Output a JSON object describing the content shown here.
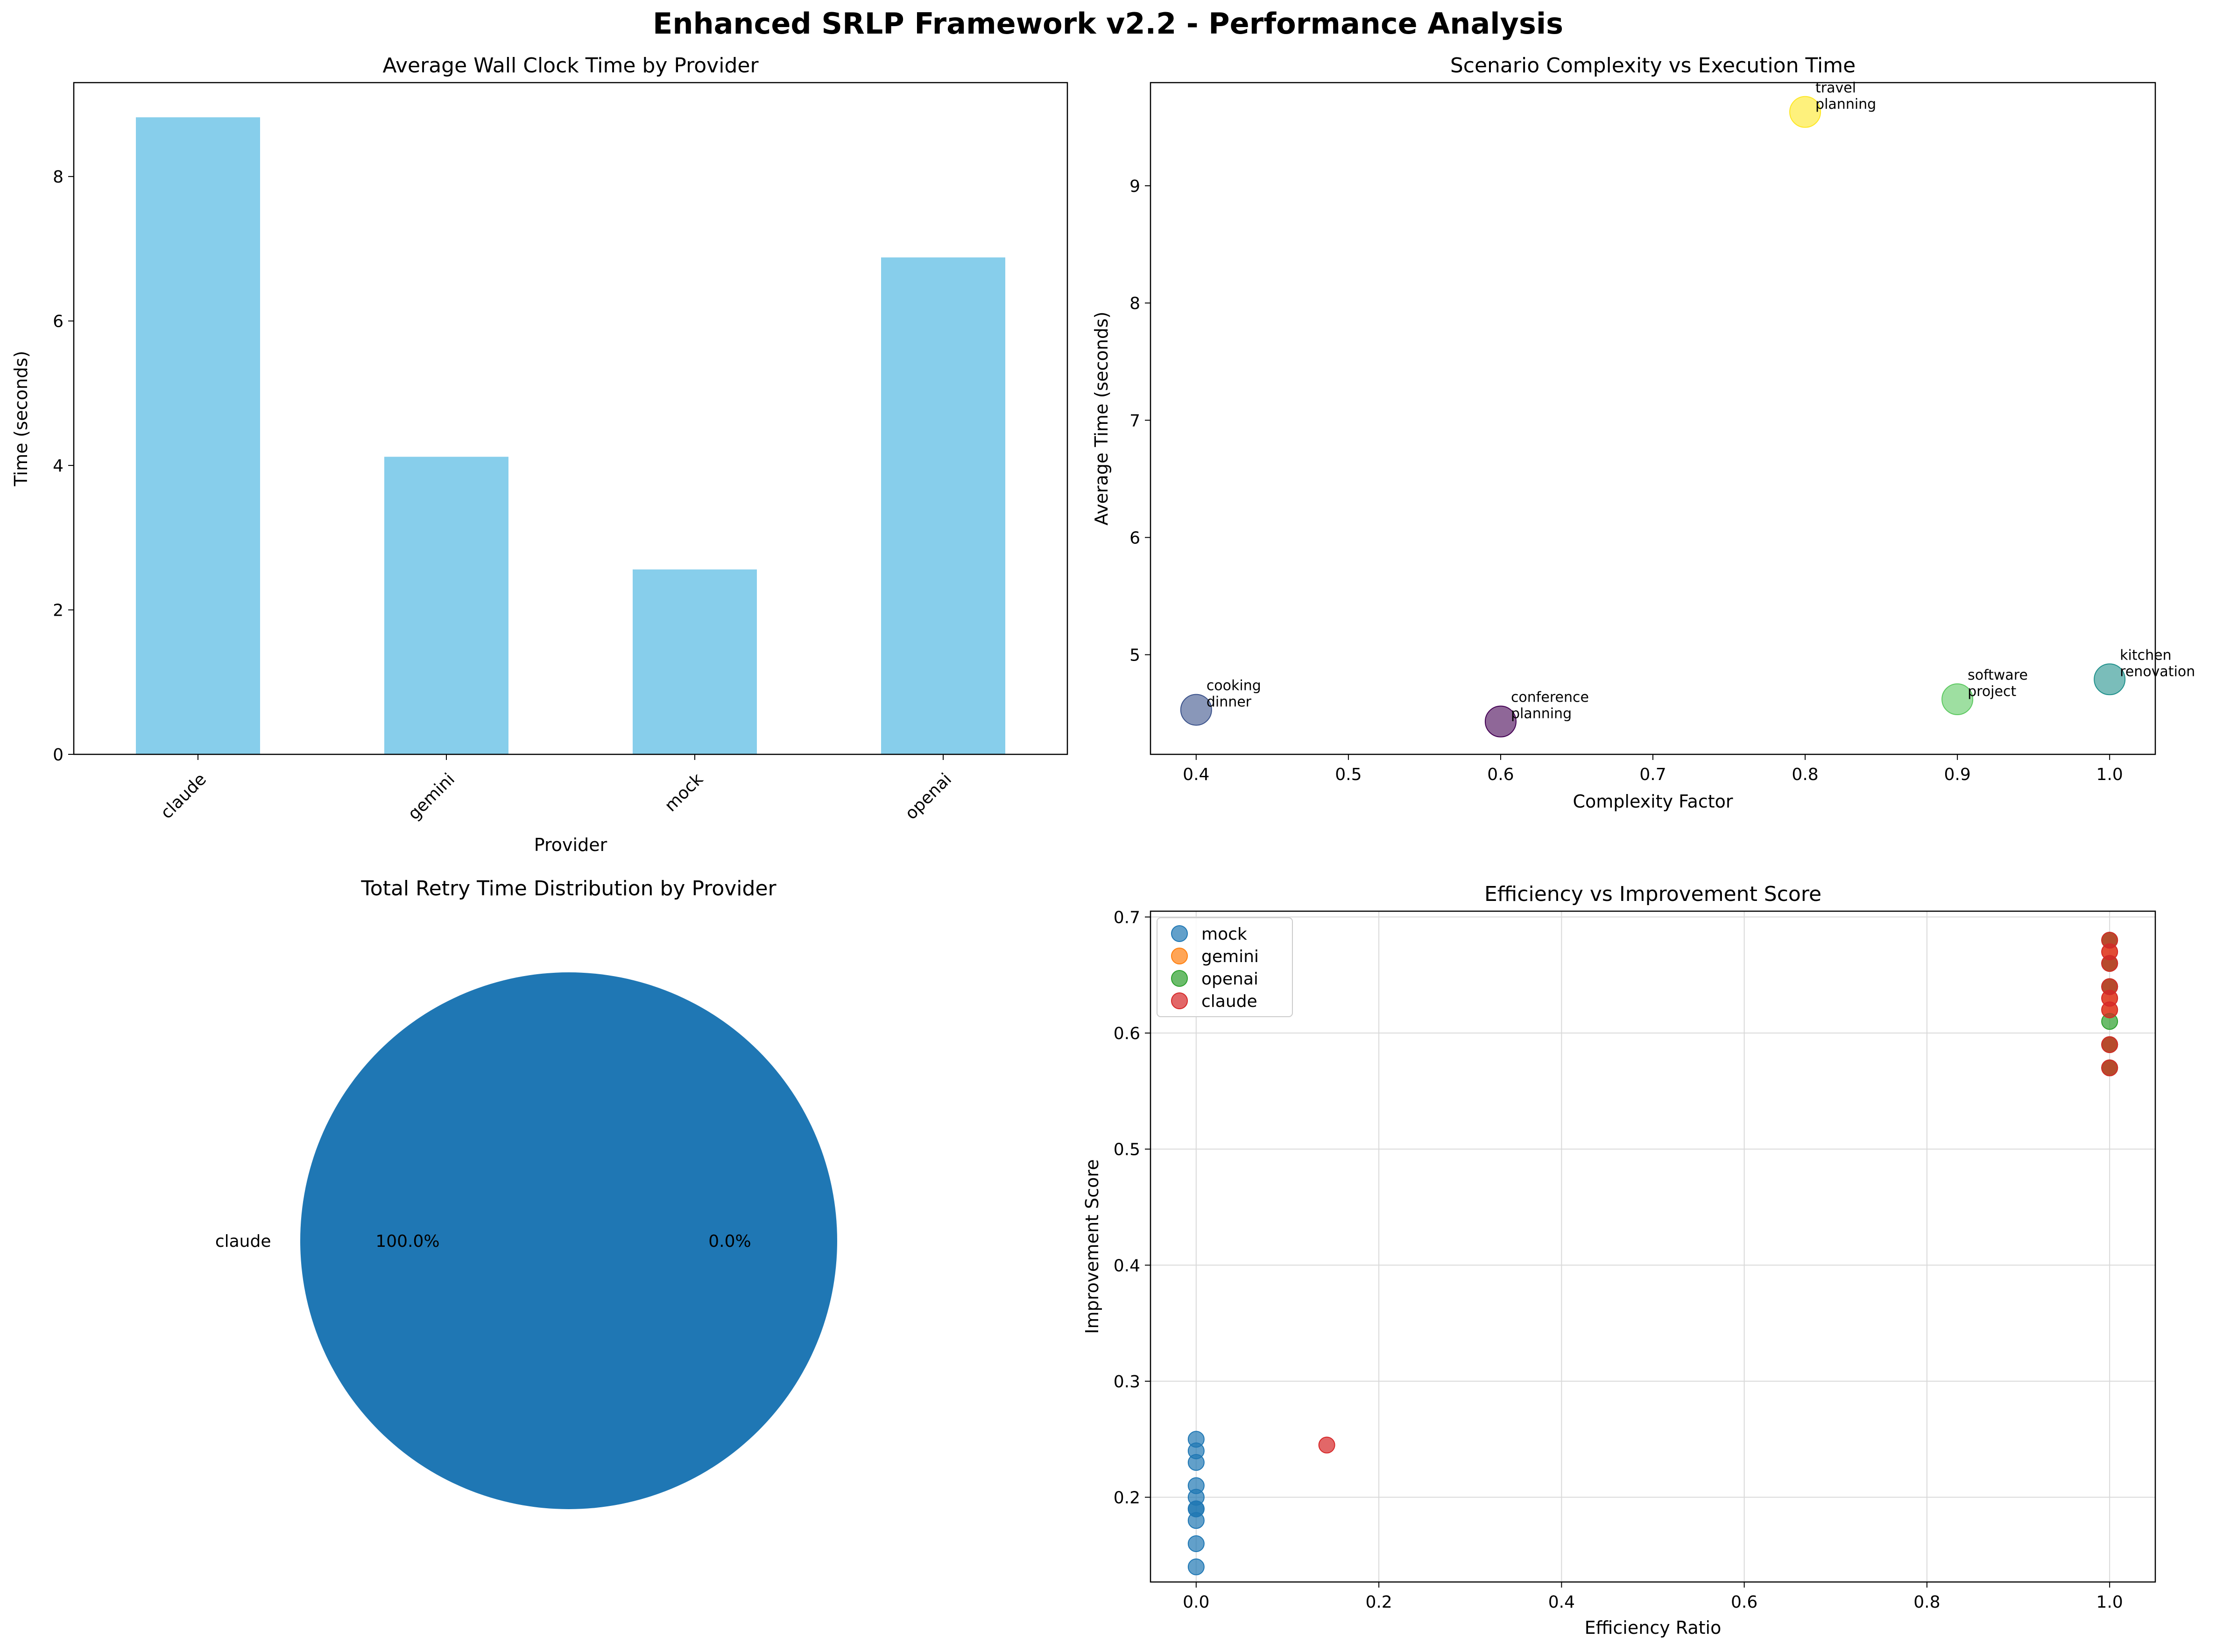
{
  "figure": {
    "suptitle": "Enhanced SRLP Framework v2.2 - Performance Analysis"
  },
  "chart_data": [
    {
      "type": "bar",
      "title": "Average Wall Clock Time by Provider",
      "xlabel": "Provider",
      "ylabel": "Time (seconds)",
      "categories": [
        "claude",
        "gemini",
        "mock",
        "openai"
      ],
      "values": [
        8.82,
        4.12,
        2.56,
        6.88
      ],
      "ylim": [
        0,
        9.3
      ],
      "yticks": [
        0,
        2,
        4,
        6,
        8
      ],
      "bar_color": "#87ceeb",
      "grid": false,
      "xtick_rotation": 45
    },
    {
      "type": "scatter",
      "title": "Scenario Complexity vs Execution Time",
      "xlabel": "Complexity Factor",
      "ylabel": "Average Time (seconds)",
      "xlim": [
        0.37,
        1.03
      ],
      "ylim": [
        4.15,
        9.88
      ],
      "xticks": [
        0.4,
        0.5,
        0.6,
        0.7,
        0.8,
        0.9,
        1.0
      ],
      "yticks": [
        5,
        6,
        7,
        8,
        9
      ],
      "grid": false,
      "points": [
        {
          "label": [
            "cooking",
            "dinner"
          ],
          "x": 0.4,
          "y": 4.53,
          "color": "#3b528b"
        },
        {
          "label": [
            "conference",
            "planning"
          ],
          "x": 0.6,
          "y": 4.43,
          "color": "#440154"
        },
        {
          "label": [
            "travel",
            "planning"
          ],
          "x": 0.8,
          "y": 9.63,
          "color": "#fde725"
        },
        {
          "label": [
            "software",
            "project"
          ],
          "x": 0.9,
          "y": 4.62,
          "color": "#5ec962"
        },
        {
          "label": [
            "kitchen",
            "renovation"
          ],
          "x": 1.0,
          "y": 4.79,
          "color": "#21918c"
        }
      ]
    },
    {
      "type": "pie",
      "title": "Total Retry Time Distribution by Provider",
      "slices": [
        {
          "label": "claude",
          "value": 100.0,
          "pct_label": "100.0%",
          "color": "#1f77b4"
        },
        {
          "label": "",
          "value": 0.0,
          "pct_label": "0.0%",
          "color": "#ff7f0e"
        }
      ]
    },
    {
      "type": "scatter",
      "title": "Efficiency vs Improvement Score",
      "xlabel": "Efficiency Ratio",
      "ylabel": "Improvement Score",
      "xlim": [
        -0.05,
        1.05
      ],
      "ylim": [
        0.127,
        0.705
      ],
      "xticks": [
        0.0,
        0.2,
        0.4,
        0.6,
        0.8,
        1.0
      ],
      "yticks": [
        0.2,
        0.3,
        0.4,
        0.5,
        0.6,
        0.7
      ],
      "grid": true,
      "legend_loc": "upper left",
      "series": [
        {
          "name": "mock",
          "color": "#1f77b4",
          "points": [
            [
              0,
              0.25
            ],
            [
              0,
              0.24
            ],
            [
              0,
              0.23
            ],
            [
              0,
              0.21
            ],
            [
              0,
              0.2
            ],
            [
              0,
              0.19
            ],
            [
              0,
              0.19
            ],
            [
              0,
              0.18
            ],
            [
              0,
              0.16
            ],
            [
              0,
              0.14
            ]
          ]
        },
        {
          "name": "gemini",
          "color": "#ff7f0e",
          "points": [
            [
              1,
              0.68
            ],
            [
              1,
              0.67
            ],
            [
              1,
              0.66
            ],
            [
              1,
              0.64
            ],
            [
              1,
              0.63
            ],
            [
              1,
              0.62
            ],
            [
              1,
              0.59
            ],
            [
              1,
              0.57
            ]
          ]
        },
        {
          "name": "openai",
          "color": "#2ca02c",
          "points": [
            [
              1,
              0.68
            ],
            [
              1,
              0.66
            ],
            [
              1,
              0.64
            ],
            [
              1,
              0.61
            ],
            [
              1,
              0.59
            ],
            [
              1,
              0.57
            ]
          ]
        },
        {
          "name": "claude",
          "color": "#d62728",
          "points": [
            [
              1,
              0.68
            ],
            [
              1,
              0.67
            ],
            [
              1,
              0.66
            ],
            [
              1,
              0.64
            ],
            [
              1,
              0.63
            ],
            [
              1,
              0.62
            ],
            [
              1,
              0.59
            ],
            [
              1,
              0.57
            ],
            [
              0.143,
              0.245
            ]
          ]
        }
      ]
    }
  ]
}
